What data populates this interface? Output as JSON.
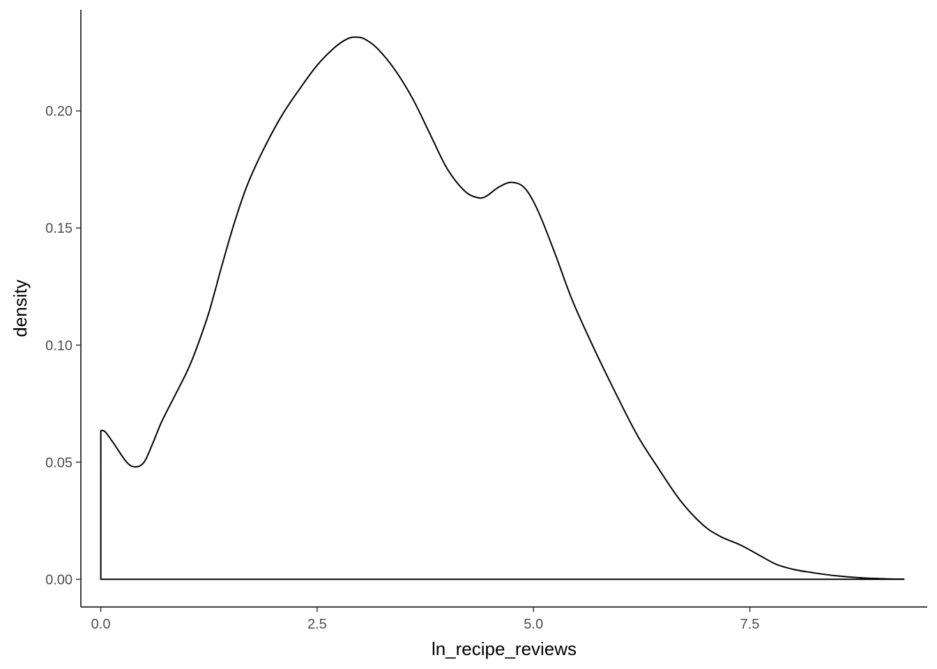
{
  "chart_data": {
    "type": "area",
    "title": "",
    "xlabel": "ln_recipe_reviews",
    "ylabel": "density",
    "xlim": [
      -0.23,
      9.55
    ],
    "ylim": [
      -0.0118,
      0.2432
    ],
    "x_ticks": [
      0.0,
      2.5,
      5.0,
      7.5
    ],
    "x_tick_labels": [
      "0.0",
      "2.5",
      "5.0",
      "7.5"
    ],
    "y_ticks": [
      0.0,
      0.05,
      0.1,
      0.15,
      0.2
    ],
    "y_tick_labels": [
      "0.00",
      "0.05",
      "0.10",
      "0.15",
      "0.20"
    ],
    "grid": false,
    "fill": "none",
    "line_color": "#000000",
    "series": [
      {
        "x": [
          0.0,
          0.05,
          0.15,
          0.3,
          0.4,
          0.5,
          0.6,
          0.7,
          0.85,
          1.0,
          1.1,
          1.25,
          1.4,
          1.55,
          1.7,
          1.9,
          2.1,
          2.3,
          2.5,
          2.7,
          2.85,
          2.95,
          3.05,
          3.2,
          3.4,
          3.6,
          3.8,
          4.0,
          4.2,
          4.35,
          4.45,
          4.6,
          4.75,
          4.9,
          5.05,
          5.25,
          5.45,
          5.7,
          5.95,
          6.2,
          6.45,
          6.7,
          6.95,
          7.15,
          7.4,
          7.6,
          7.8,
          8.0,
          8.2,
          8.5,
          8.8,
          9.1,
          9.28
        ],
        "y": [
          0.0635,
          0.063,
          0.058,
          0.05,
          0.048,
          0.05,
          0.058,
          0.067,
          0.078,
          0.089,
          0.098,
          0.114,
          0.134,
          0.153,
          0.169,
          0.185,
          0.1985,
          0.2095,
          0.2195,
          0.227,
          0.2308,
          0.2315,
          0.2307,
          0.2265,
          0.2175,
          0.2055,
          0.1905,
          0.1755,
          0.166,
          0.163,
          0.1635,
          0.1675,
          0.1695,
          0.167,
          0.1575,
          0.139,
          0.119,
          0.0985,
          0.0795,
          0.0615,
          0.047,
          0.0335,
          0.0235,
          0.0185,
          0.0145,
          0.0105,
          0.0065,
          0.0043,
          0.003,
          0.0015,
          0.0006,
          0.0002,
          0.0001
        ]
      }
    ]
  }
}
